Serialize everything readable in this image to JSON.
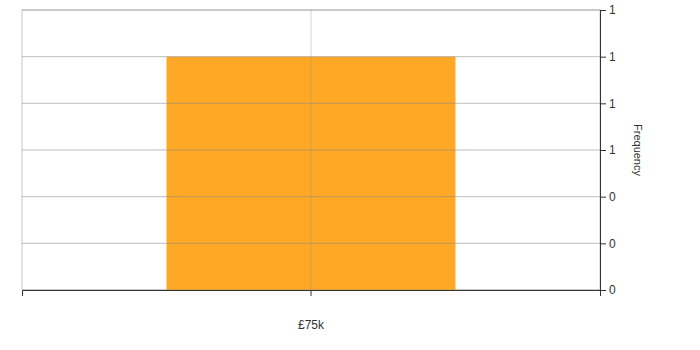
{
  "chart_data": {
    "type": "bar",
    "categories": [
      "£75k"
    ],
    "values": [
      1
    ],
    "color": "#ffa31a",
    "ylabel": "Frequency",
    "ylim": [
      0,
      1.2
    ],
    "yticks": [
      0,
      {
        "value": 0.2,
        "label": "0"
      },
      {
        "value": 0.4,
        "label": "0"
      },
      {
        "value": 0.6,
        "label": "1"
      },
      {
        "value": 0.8,
        "label": "1"
      },
      1,
      {
        "value": 1.2,
        "label": "1"
      }
    ],
    "grid": true
  }
}
